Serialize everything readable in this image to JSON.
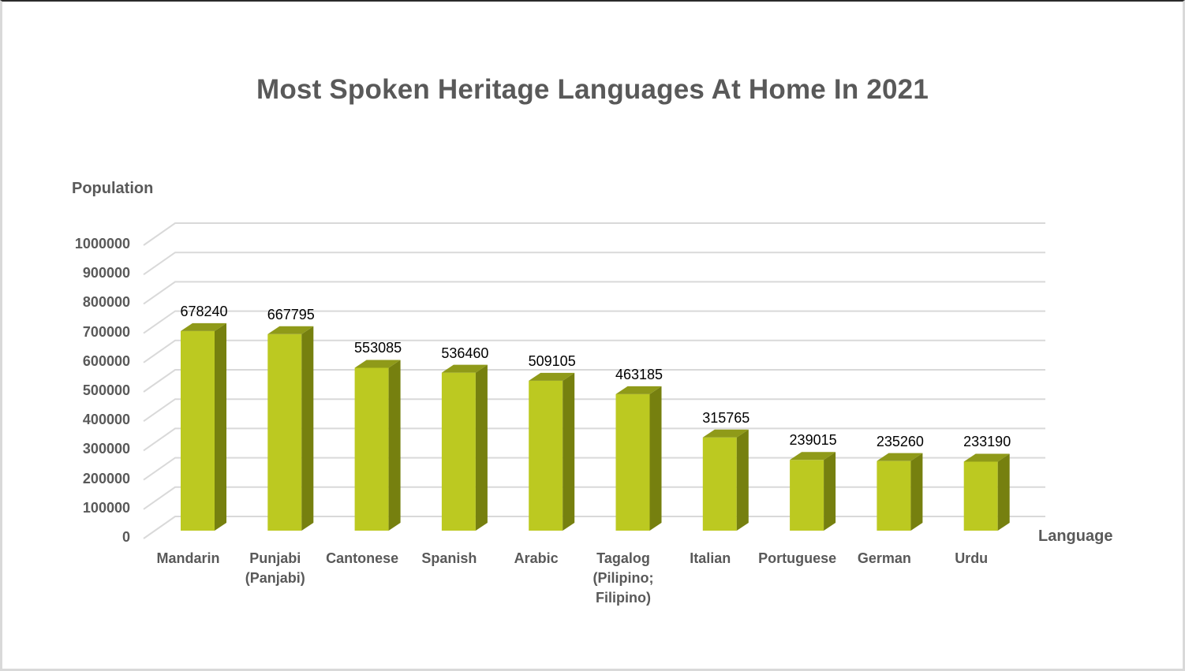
{
  "chart": {
    "title": "Most Spoken Heritage Languages At Home In 2021",
    "ylabel": "Population",
    "xlabel": "Language",
    "bar_color_front": "#bcc921",
    "bar_color_top": "#8f9a19",
    "bar_color_side": "#76800f",
    "y_ticks": [
      "1000000",
      "900000",
      "800000",
      "700000",
      "600000",
      "500000",
      "400000",
      "300000",
      "200000",
      "100000",
      "0"
    ],
    "bars": [
      {
        "label_lines": [
          "Mandarin"
        ],
        "value": 678240,
        "value_label": "678240"
      },
      {
        "label_lines": [
          "Punjabi",
          "(Panjabi)"
        ],
        "value": 667795,
        "value_label": "667795"
      },
      {
        "label_lines": [
          "Cantonese"
        ],
        "value": 553085,
        "value_label": "553085"
      },
      {
        "label_lines": [
          "Spanish"
        ],
        "value": 536460,
        "value_label": "536460"
      },
      {
        "label_lines": [
          "Arabic"
        ],
        "value": 509105,
        "value_label": "509105"
      },
      {
        "label_lines": [
          "Tagalog",
          "(Pilipino;",
          "Filipino)"
        ],
        "value": 463185,
        "value_label": "463185"
      },
      {
        "label_lines": [
          "Italian"
        ],
        "value": 315765,
        "value_label": "315765"
      },
      {
        "label_lines": [
          "Portuguese"
        ],
        "value": 239015,
        "value_label": "239015"
      },
      {
        "label_lines": [
          "German"
        ],
        "value": 235260,
        "value_label": "235260"
      },
      {
        "label_lines": [
          "Urdu"
        ],
        "value": 233190,
        "value_label": "233190"
      }
    ]
  },
  "chart_data": {
    "type": "bar",
    "title": "Most Spoken Heritage Languages At Home In 2021",
    "xlabel": "Language",
    "ylabel": "Population",
    "categories": [
      "Mandarin",
      "Punjabi (Panjabi)",
      "Cantonese",
      "Spanish",
      "Arabic",
      "Tagalog (Pilipino; Filipino)",
      "Italian",
      "Portuguese",
      "German",
      "Urdu"
    ],
    "values": [
      678240,
      667795,
      553085,
      536460,
      509105,
      463185,
      315765,
      239015,
      235260,
      233190
    ],
    "ylim": [
      0,
      1000000
    ],
    "y_tick_step": 100000,
    "grid": true,
    "legend": null,
    "style": "3d-column",
    "data_labels": true
  }
}
